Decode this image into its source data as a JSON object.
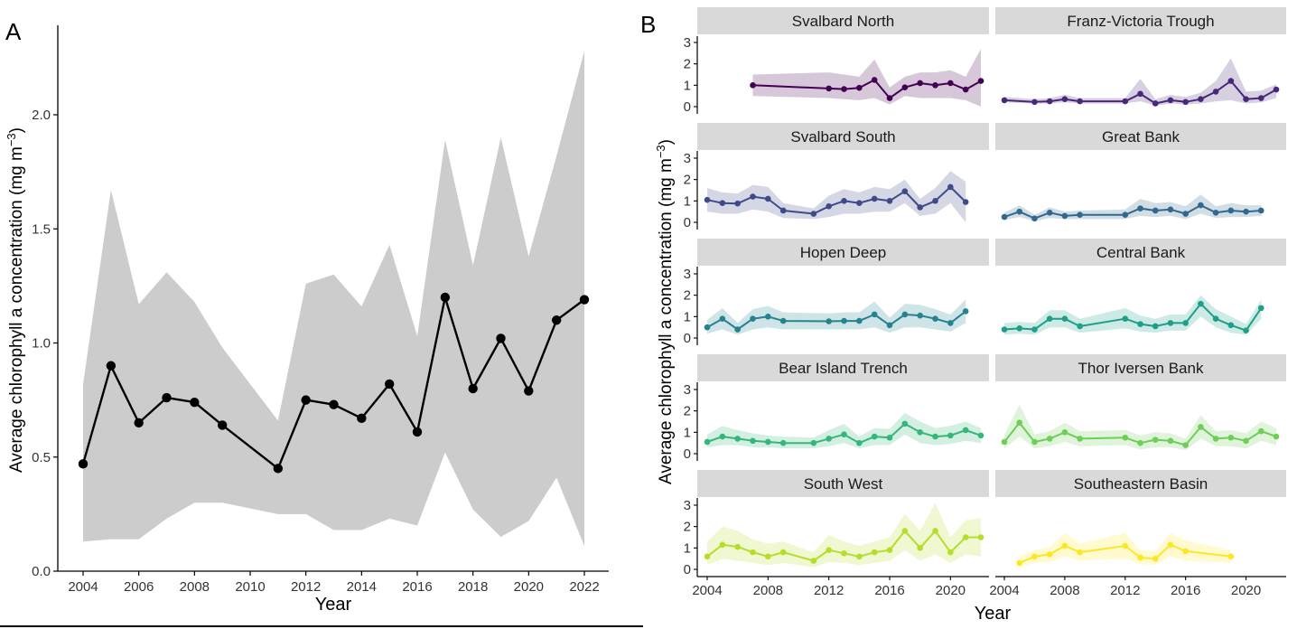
{
  "panel_a": {
    "label": "A",
    "ylabel_main": "Average chlorophyll a concentration (mg m",
    "ylabel_sup": "−3",
    "ylabel_close": ")",
    "xlabel": "Year"
  },
  "panel_b": {
    "label": "B",
    "ylabel_main": "Average chlorophyll a concentration (mg m",
    "ylabel_sup": "−3",
    "ylabel_close": ")",
    "xlabel": "Year"
  },
  "colors": {
    "black": "#000000",
    "band_gray": "#cccccc",
    "strip_gray": "#d9d9d9",
    "svalbard_north": "#440154",
    "franz_victoria_trough": "#482878",
    "svalbard_south": "#3e4a89",
    "great_bank": "#31688e",
    "hopen_deep": "#26828e",
    "central_bank": "#1f9e89",
    "bear_island_trench": "#35b779",
    "thor_iversen_bank": "#6ece58",
    "south_west": "#b5de2b",
    "southeastern_basin": "#fde725"
  },
  "chart_data": [
    {
      "type": "line",
      "panel": "A",
      "title": "",
      "xlabel": "Year",
      "ylabel": "Average chlorophyll a concentration (mg m−3)",
      "xlim": [
        2004,
        2022
      ],
      "ylim": [
        0,
        2.3
      ],
      "xticks": [
        2004,
        2006,
        2008,
        2010,
        2012,
        2014,
        2016,
        2018,
        2020,
        2022
      ],
      "yticks": [
        0.0,
        0.5,
        1.0,
        1.5,
        2.0
      ],
      "ytick_labels": [
        "0.0",
        "0.5",
        "1.0",
        "1.5",
        "2.0"
      ],
      "x": [
        2004,
        2005,
        2006,
        2007,
        2008,
        2009,
        2011,
        2012,
        2013,
        2014,
        2015,
        2016,
        2017,
        2018,
        2019,
        2020,
        2021,
        2022
      ],
      "y": [
        0.47,
        0.9,
        0.65,
        0.76,
        0.74,
        0.64,
        0.45,
        0.75,
        0.73,
        0.67,
        0.82,
        0.61,
        1.2,
        0.8,
        1.02,
        0.79,
        1.1,
        1.19
      ],
      "lower": [
        0.13,
        0.14,
        0.14,
        0.23,
        0.3,
        0.3,
        0.25,
        0.25,
        0.18,
        0.18,
        0.23,
        0.2,
        0.52,
        0.27,
        0.15,
        0.22,
        0.41,
        0.11
      ],
      "upper": [
        0.82,
        1.67,
        1.17,
        1.31,
        1.18,
        0.98,
        0.66,
        1.26,
        1.3,
        1.16,
        1.43,
        1.03,
        1.89,
        1.34,
        1.9,
        1.38,
        1.82,
        2.28
      ]
    },
    {
      "type": "line",
      "panel": "B",
      "layout": "facet grid, 5 rows x 2 columns, shared y axis",
      "xlabel": "Year",
      "ylabel": "Average chlorophyll a concentration (mg m−3)",
      "xlim": [
        2004,
        2022
      ],
      "ylim": [
        0,
        3
      ],
      "xticks": [
        2004,
        2008,
        2012,
        2016,
        2020
      ],
      "yticks": [
        0,
        1,
        2,
        3
      ],
      "facets": [
        {
          "name": "Svalbard North",
          "color_key": "svalbard_north",
          "x": [
            2007,
            2012,
            2013,
            2014,
            2015,
            2016,
            2017,
            2018,
            2019,
            2020,
            2021,
            2022
          ],
          "y": [
            1.0,
            0.85,
            0.82,
            0.88,
            1.25,
            0.4,
            0.9,
            1.1,
            1.0,
            1.1,
            0.8,
            1.2
          ],
          "lower": [
            0.5,
            0.4,
            0.35,
            0.3,
            0.4,
            0.1,
            0.5,
            0.4,
            0.4,
            0.4,
            0.3,
            0.0
          ],
          "upper": [
            1.5,
            1.6,
            1.5,
            1.4,
            2.2,
            0.9,
            1.4,
            1.6,
            1.6,
            1.7,
            1.4,
            2.7
          ]
        },
        {
          "name": "Franz-Victoria Trough",
          "color_key": "franz_victoria_trough",
          "x": [
            2004,
            2006,
            2007,
            2008,
            2009,
            2012,
            2013,
            2014,
            2015,
            2016,
            2017,
            2018,
            2019,
            2020,
            2021,
            2022
          ],
          "y": [
            0.3,
            0.22,
            0.25,
            0.35,
            0.25,
            0.25,
            0.6,
            0.15,
            0.3,
            0.22,
            0.35,
            0.7,
            1.2,
            0.35,
            0.4,
            0.8
          ],
          "lower": [
            0.2,
            0.15,
            0.15,
            0.2,
            0.15,
            0.15,
            0.25,
            0.05,
            0.15,
            0.1,
            0.15,
            0.25,
            0.3,
            0.15,
            0.2,
            0.4
          ],
          "upper": [
            0.45,
            0.35,
            0.4,
            0.55,
            0.4,
            0.4,
            1.3,
            0.35,
            0.55,
            0.45,
            0.65,
            1.2,
            2.25,
            0.7,
            0.75,
            1.05
          ]
        },
        {
          "name": "Svalbard South",
          "color_key": "svalbard_south",
          "x": [
            2004,
            2005,
            2006,
            2007,
            2008,
            2009,
            2011,
            2012,
            2013,
            2014,
            2015,
            2016,
            2017,
            2018,
            2019,
            2020,
            2021
          ],
          "y": [
            1.05,
            0.9,
            0.88,
            1.2,
            1.1,
            0.55,
            0.4,
            0.75,
            1.0,
            0.9,
            1.1,
            1.0,
            1.45,
            0.7,
            1.0,
            1.65,
            0.95
          ],
          "lower": [
            0.5,
            0.4,
            0.4,
            0.6,
            0.5,
            0.2,
            0.15,
            0.25,
            0.4,
            0.4,
            0.5,
            0.5,
            0.9,
            0.3,
            0.4,
            0.9,
            0.0
          ],
          "upper": [
            1.6,
            1.4,
            1.35,
            1.75,
            1.65,
            0.9,
            0.65,
            1.25,
            1.55,
            1.4,
            1.65,
            1.55,
            2.0,
            1.1,
            1.6,
            2.4,
            1.9
          ]
        },
        {
          "name": "Great Bank",
          "color_key": "great_bank",
          "x": [
            2004,
            2005,
            2006,
            2007,
            2008,
            2009,
            2012,
            2013,
            2014,
            2015,
            2016,
            2017,
            2018,
            2019,
            2020,
            2021
          ],
          "y": [
            0.25,
            0.5,
            0.18,
            0.45,
            0.3,
            0.35,
            0.35,
            0.65,
            0.55,
            0.6,
            0.4,
            0.8,
            0.45,
            0.55,
            0.5,
            0.55
          ],
          "lower": [
            0.1,
            0.25,
            0.05,
            0.2,
            0.15,
            0.15,
            0.15,
            0.3,
            0.25,
            0.3,
            0.15,
            0.4,
            0.2,
            0.25,
            0.25,
            0.3
          ],
          "upper": [
            0.45,
            0.8,
            0.35,
            0.7,
            0.5,
            0.55,
            0.6,
            1.1,
            0.9,
            0.95,
            0.75,
            1.3,
            0.75,
            0.9,
            0.8,
            0.8
          ]
        },
        {
          "name": "Hopen Deep",
          "color_key": "hopen_deep",
          "x": [
            2004,
            2005,
            2006,
            2007,
            2008,
            2009,
            2012,
            2013,
            2014,
            2015,
            2016,
            2017,
            2018,
            2019,
            2020,
            2021
          ],
          "y": [
            0.5,
            0.9,
            0.4,
            0.9,
            1.0,
            0.8,
            0.78,
            0.8,
            0.8,
            1.1,
            0.6,
            1.1,
            1.05,
            0.9,
            0.7,
            1.25
          ],
          "lower": [
            0.2,
            0.4,
            0.15,
            0.4,
            0.5,
            0.4,
            0.4,
            0.4,
            0.4,
            0.5,
            0.25,
            0.5,
            0.5,
            0.4,
            0.3,
            0.7
          ],
          "upper": [
            0.85,
            1.4,
            0.7,
            1.35,
            1.5,
            1.2,
            1.15,
            1.2,
            1.2,
            1.7,
            0.95,
            1.6,
            1.55,
            1.35,
            1.1,
            1.8
          ]
        },
        {
          "name": "Central Bank",
          "color_key": "central_bank",
          "x": [
            2004,
            2005,
            2006,
            2007,
            2008,
            2009,
            2012,
            2013,
            2014,
            2015,
            2016,
            2017,
            2018,
            2019,
            2020,
            2021
          ],
          "y": [
            0.4,
            0.45,
            0.4,
            0.9,
            0.9,
            0.55,
            0.9,
            0.65,
            0.55,
            0.7,
            0.7,
            1.6,
            0.9,
            0.6,
            0.35,
            1.4
          ],
          "lower": [
            0.15,
            0.2,
            0.15,
            0.5,
            0.5,
            0.25,
            0.45,
            0.3,
            0.25,
            0.35,
            0.35,
            1.0,
            0.5,
            0.25,
            0.15,
            0.9
          ],
          "upper": [
            0.7,
            0.75,
            0.7,
            1.3,
            1.3,
            0.9,
            1.4,
            1.05,
            0.9,
            1.1,
            1.1,
            2.0,
            1.35,
            1.0,
            0.65,
            1.8
          ]
        },
        {
          "name": "Bear Island Trench",
          "color_key": "bear_island_trench",
          "x": [
            2004,
            2005,
            2006,
            2007,
            2008,
            2009,
            2011,
            2012,
            2013,
            2014,
            2015,
            2016,
            2017,
            2018,
            2019,
            2020,
            2021,
            2022
          ],
          "y": [
            0.55,
            0.8,
            0.7,
            0.6,
            0.55,
            0.5,
            0.5,
            0.7,
            0.9,
            0.5,
            0.8,
            0.75,
            1.4,
            1.0,
            0.8,
            0.85,
            1.1,
            0.85
          ],
          "lower": [
            0.3,
            0.4,
            0.4,
            0.3,
            0.3,
            0.25,
            0.25,
            0.35,
            0.5,
            0.25,
            0.4,
            0.4,
            0.9,
            0.5,
            0.4,
            0.45,
            0.6,
            0.5
          ],
          "upper": [
            0.9,
            1.3,
            1.1,
            0.95,
            0.85,
            0.8,
            0.75,
            1.1,
            1.4,
            0.8,
            1.2,
            1.15,
            1.9,
            1.5,
            1.2,
            1.3,
            1.5,
            1.2
          ]
        },
        {
          "name": "Thor Iversen Bank",
          "color_key": "thor_iversen_bank",
          "x": [
            2004,
            2005,
            2006,
            2007,
            2008,
            2009,
            2012,
            2013,
            2014,
            2015,
            2016,
            2017,
            2018,
            2019,
            2020,
            2021,
            2022
          ],
          "y": [
            0.55,
            1.45,
            0.55,
            0.7,
            1.0,
            0.7,
            0.75,
            0.5,
            0.65,
            0.6,
            0.4,
            1.25,
            0.7,
            0.75,
            0.6,
            1.05,
            0.8
          ],
          "lower": [
            0.25,
            0.8,
            0.25,
            0.35,
            0.55,
            0.35,
            0.4,
            0.2,
            0.3,
            0.3,
            0.15,
            0.7,
            0.35,
            0.35,
            0.25,
            0.6,
            0.4
          ],
          "upper": [
            0.9,
            2.3,
            0.9,
            1.05,
            1.45,
            1.05,
            1.1,
            0.85,
            1.0,
            0.95,
            0.7,
            1.8,
            1.05,
            1.1,
            0.95,
            1.5,
            1.2
          ]
        },
        {
          "name": "South West",
          "color_key": "south_west",
          "x": [
            2004,
            2005,
            2006,
            2007,
            2008,
            2009,
            2011,
            2012,
            2013,
            2014,
            2015,
            2016,
            2017,
            2018,
            2019,
            2020,
            2021,
            2022
          ],
          "y": [
            0.6,
            1.15,
            1.05,
            0.8,
            0.6,
            0.8,
            0.4,
            0.9,
            0.75,
            0.6,
            0.8,
            0.9,
            1.8,
            1.0,
            1.8,
            0.8,
            1.5,
            1.5
          ],
          "lower": [
            0.2,
            0.5,
            0.4,
            0.3,
            0.2,
            0.3,
            0.1,
            0.35,
            0.3,
            0.2,
            0.3,
            0.4,
            0.9,
            0.4,
            0.7,
            0.3,
            0.7,
            0.6
          ],
          "upper": [
            1.3,
            2.0,
            1.8,
            1.4,
            1.2,
            1.3,
            0.8,
            1.6,
            1.3,
            1.1,
            1.3,
            1.5,
            2.6,
            1.8,
            3.1,
            1.5,
            2.3,
            2.4
          ]
        },
        {
          "name": "Southeastern Basin",
          "color_key": "southeastern_basin",
          "x": [
            2005,
            2006,
            2007,
            2008,
            2009,
            2012,
            2013,
            2014,
            2015,
            2016,
            2019
          ],
          "y": [
            0.3,
            0.6,
            0.7,
            1.1,
            0.8,
            1.1,
            0.55,
            0.5,
            1.15,
            0.85,
            0.6
          ],
          "lower": [
            0.1,
            0.3,
            0.35,
            0.6,
            0.4,
            0.5,
            0.25,
            0.2,
            0.6,
            0.4,
            0.3
          ],
          "upper": [
            0.6,
            0.9,
            1.05,
            1.7,
            1.2,
            1.7,
            0.9,
            0.85,
            1.7,
            1.35,
            0.9
          ]
        }
      ]
    }
  ]
}
